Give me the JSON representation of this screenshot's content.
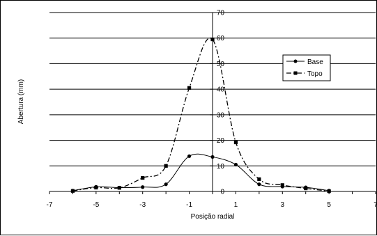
{
  "chart_data": {
    "type": "line",
    "title": "",
    "xlabel": "Posição radial",
    "ylabel": "Abertura (mm)",
    "xlim": [
      -7,
      7
    ],
    "ylim": [
      0,
      70
    ],
    "x_ticks": [
      "-7",
      "-5",
      "-3",
      "-1",
      "1",
      "3",
      "5",
      "7"
    ],
    "y_ticks": [
      "0",
      "10",
      "20",
      "30",
      "40",
      "50",
      "60",
      "70"
    ],
    "grid": "horizontal",
    "legend_position": "right",
    "series": [
      {
        "name": "Base",
        "style": "solid",
        "marker": "circle",
        "color": "#000000",
        "x": [
          -6,
          -5,
          -4,
          -3,
          -2,
          -1,
          0,
          1,
          2,
          3,
          4,
          5
        ],
        "y": [
          0.3,
          1.8,
          1.5,
          1.7,
          2.8,
          13.8,
          13.5,
          10.5,
          2.8,
          1.9,
          1.6,
          0.3
        ]
      },
      {
        "name": "Topo",
        "style": "dashdot",
        "marker": "square",
        "color": "#000000",
        "x": [
          -6,
          -5,
          -4,
          -3,
          -2,
          -1,
          0,
          1,
          2,
          3,
          4,
          5
        ],
        "y": [
          0.2,
          1.5,
          1.4,
          5.3,
          10.0,
          40.5,
          59.5,
          19.2,
          4.8,
          2.5,
          1.2,
          0.1
        ]
      }
    ]
  }
}
